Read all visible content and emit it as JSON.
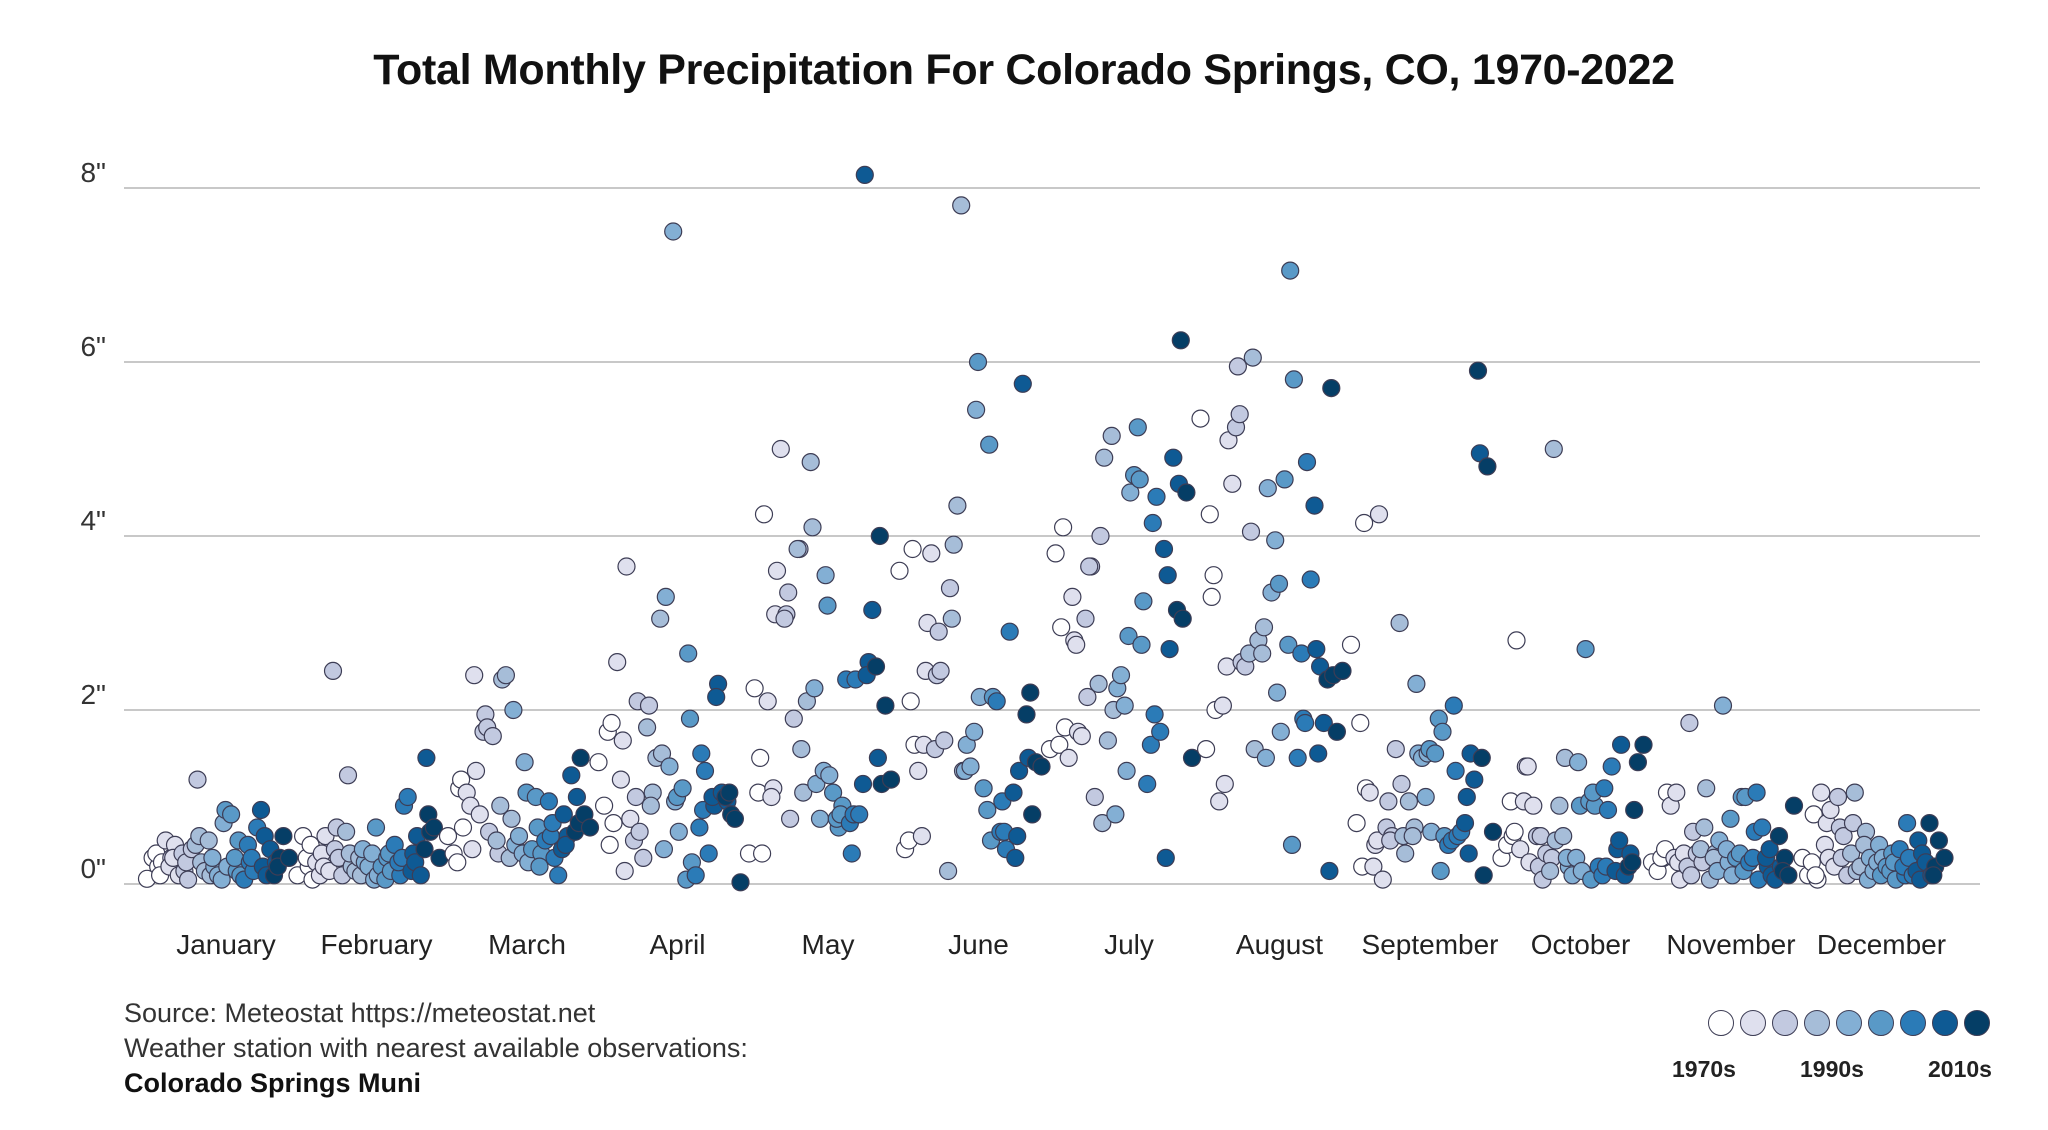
{
  "title": "Total Monthly Precipitation For Colorado Springs, CO, 1970-2022",
  "source": {
    "line1": "Source: Meteostat https://meteostat.net",
    "line2": "Weather station with nearest available observations:",
    "station": "Colorado Springs Muni"
  },
  "legend": {
    "labels": [
      "1970s",
      "1990s",
      "2010s"
    ],
    "colors": [
      "#ffffff",
      "#dfe0ee",
      "#c2c9e0",
      "#a6bdd8",
      "#83afd4",
      "#5999c7",
      "#2b7bb7",
      "#0e5a94",
      "#053e66"
    ]
  },
  "chart_data": {
    "type": "scatter",
    "title": "Total Monthly Precipitation For Colorado Springs, CO, 1970-2022",
    "xlabel": "",
    "ylabel": "",
    "categories": [
      "January",
      "February",
      "March",
      "April",
      "May",
      "June",
      "July",
      "August",
      "September",
      "October",
      "November",
      "December"
    ],
    "ylim": [
      0,
      8.2
    ],
    "yticks": [
      0,
      2,
      4,
      6,
      8
    ],
    "ytick_labels": [
      "0\"",
      "2\"",
      "4\"",
      "6\"",
      "8\""
    ],
    "grid": true,
    "legend_placement": "bottom-right",
    "color_by": "decade",
    "series": [
      {
        "name": "January",
        "values": [
          0.06,
          0.3,
          0.2,
          0.35,
          0.25,
          0.1,
          0.5,
          0.3,
          0.2,
          0.45,
          0.3,
          0.1,
          0.15,
          0.35,
          0.05,
          0.25,
          0.4,
          1.2,
          0.45,
          0.25,
          0.55,
          0.15,
          0.1,
          0.5,
          0.2,
          0.3,
          0.1,
          0.7,
          0.05,
          0.2,
          0.85,
          0.8,
          0.15,
          0.3,
          0.1,
          0.5,
          0.05,
          0.25,
          0.45,
          0.15,
          0.3,
          0.65,
          0.2,
          0.85,
          0.1,
          0.55,
          0.4,
          0.25,
          0.1,
          0.3,
          0.2,
          0.55,
          0.3
        ]
      },
      {
        "name": "February",
        "values": [
          0.1,
          0.55,
          0.2,
          0.3,
          0.05,
          0.45,
          0.25,
          0.35,
          0.1,
          0.55,
          0.2,
          0.15,
          0.4,
          2.45,
          0.3,
          0.65,
          0.1,
          1.25,
          0.6,
          0.2,
          0.35,
          0.15,
          0.1,
          0.3,
          0.25,
          0.4,
          0.2,
          0.05,
          0.35,
          0.1,
          0.65,
          0.2,
          0.3,
          0.05,
          0.15,
          0.35,
          0.45,
          0.1,
          0.25,
          0.9,
          0.3,
          1.0,
          0.35,
          0.15,
          0.55,
          0.25,
          0.1,
          1.45,
          0.4,
          0.6,
          0.8,
          0.65,
          0.3
        ]
      },
      {
        "name": "March",
        "values": [
          0.55,
          0.35,
          1.1,
          0.25,
          0.65,
          1.2,
          1.05,
          0.4,
          0.9,
          1.3,
          2.4,
          0.8,
          1.95,
          1.75,
          0.6,
          1.8,
          1.7,
          0.35,
          0.5,
          2.35,
          0.9,
          2.4,
          0.75,
          0.3,
          0.45,
          2.0,
          0.55,
          1.4,
          0.35,
          0.25,
          1.05,
          0.4,
          0.65,
          1.0,
          0.35,
          0.2,
          0.5,
          0.55,
          0.95,
          0.3,
          0.7,
          0.1,
          0.8,
          0.4,
          0.55,
          0.45,
          1.25,
          1.0,
          0.6,
          1.45,
          0.7,
          0.8,
          0.65
        ]
      },
      {
        "name": "April",
        "values": [
          1.4,
          0.9,
          0.45,
          1.75,
          0.7,
          1.85,
          2.55,
          1.65,
          1.2,
          3.65,
          0.15,
          0.75,
          1.0,
          0.5,
          0.6,
          2.1,
          0.3,
          2.05,
          1.8,
          1.05,
          0.9,
          1.45,
          1.5,
          3.05,
          3.3,
          0.4,
          1.35,
          0.95,
          7.5,
          0.6,
          1.0,
          1.1,
          2.65,
          0.05,
          0.25,
          1.9,
          0.1,
          1.5,
          0.65,
          1.3,
          0.85,
          0.35,
          0.9,
          1.0,
          2.3,
          2.15,
          1.05,
          0.95,
          1.0,
          0.8,
          1.05,
          0.75,
          0.02
        ]
      },
      {
        "name": "May",
        "values": [
          0.35,
          2.25,
          1.45,
          1.05,
          4.25,
          0.35,
          2.1,
          1.1,
          1.0,
          3.6,
          3.1,
          5.0,
          3.1,
          3.05,
          0.75,
          3.35,
          1.9,
          3.85,
          3.85,
          1.05,
          1.55,
          2.1,
          4.1,
          4.85,
          1.15,
          2.25,
          0.75,
          3.55,
          1.3,
          1.25,
          3.2,
          1.05,
          0.65,
          0.75,
          0.9,
          0.8,
          2.35,
          0.35,
          0.7,
          2.35,
          0.8,
          0.8,
          8.15,
          1.15,
          2.55,
          2.4,
          3.15,
          1.45,
          2.5,
          1.15,
          4.0,
          2.05,
          1.2
        ]
      },
      {
        "name": "June",
        "values": [
          3.6,
          0.4,
          2.1,
          0.5,
          1.6,
          3.85,
          1.3,
          1.6,
          0.55,
          3.0,
          2.45,
          3.8,
          2.4,
          1.55,
          2.45,
          2.9,
          1.65,
          3.4,
          0.15,
          3.9,
          3.05,
          4.35,
          1.3,
          7.8,
          1.6,
          1.3,
          1.35,
          5.45,
          1.75,
          2.15,
          6.0,
          1.1,
          5.05,
          0.85,
          2.15,
          0.5,
          2.1,
          0.95,
          0.6,
          0.4,
          0.6,
          2.9,
          0.3,
          1.05,
          1.3,
          0.55,
          5.75,
          1.45,
          1.95,
          0.8,
          2.2,
          1.4,
          1.35
        ]
      },
      {
        "name": "July",
        "values": [
          1.55,
          3.8,
          2.95,
          1.6,
          1.8,
          4.1,
          1.45,
          2.8,
          3.3,
          1.75,
          2.75,
          1.7,
          2.15,
          3.05,
          3.65,
          3.65,
          1.0,
          4.0,
          2.3,
          4.9,
          0.7,
          1.65,
          2.0,
          5.15,
          2.25,
          0.8,
          2.4,
          1.3,
          2.05,
          4.5,
          2.85,
          4.7,
          4.65,
          5.25,
          3.25,
          2.75,
          1.15,
          4.15,
          1.6,
          4.45,
          1.95,
          1.75,
          0.3,
          3.85,
          2.7,
          3.55,
          4.9,
          4.6,
          3.15,
          3.05,
          6.25,
          4.5,
          1.45
        ]
      },
      {
        "name": "August",
        "values": [
          5.35,
          1.55,
          3.3,
          4.25,
          2.0,
          3.55,
          0.95,
          1.15,
          2.05,
          5.1,
          2.5,
          4.6,
          5.95,
          5.25,
          2.55,
          5.4,
          2.5,
          4.05,
          2.65,
          1.55,
          6.05,
          2.8,
          2.95,
          2.65,
          4.55,
          1.45,
          3.35,
          2.2,
          3.95,
          1.75,
          3.45,
          4.65,
          7.05,
          2.75,
          5.8,
          0.45,
          1.45,
          1.9,
          2.65,
          4.85,
          1.85,
          3.5,
          2.7,
          4.35,
          2.5,
          1.5,
          1.85,
          0.15,
          2.35,
          2.4,
          5.7,
          1.75,
          2.45
        ]
      },
      {
        "name": "September",
        "values": [
          2.75,
          0.7,
          0.2,
          1.85,
          1.1,
          4.15,
          1.05,
          0.45,
          0.2,
          4.25,
          0.5,
          0.05,
          0.95,
          0.65,
          0.55,
          0.5,
          1.55,
          1.15,
          3.0,
          0.35,
          0.55,
          0.95,
          0.65,
          0.55,
          1.5,
          2.3,
          1.45,
          1.5,
          1.0,
          0.6,
          1.55,
          1.5,
          0.15,
          1.9,
          0.55,
          1.75,
          0.45,
          2.05,
          0.5,
          0.55,
          1.3,
          0.6,
          1.0,
          0.7,
          1.5,
          0.35,
          1.2,
          4.95,
          5.9,
          0.1,
          1.45,
          4.8,
          0.6
        ]
      },
      {
        "name": "October",
        "values": [
          0.3,
          0.45,
          0.55,
          0.95,
          2.8,
          0.6,
          0.4,
          1.35,
          0.95,
          0.25,
          1.35,
          0.9,
          0.2,
          0.55,
          0.05,
          0.55,
          0.35,
          0.3,
          0.15,
          0.5,
          5.0,
          0.9,
          1.45,
          0.55,
          0.2,
          0.3,
          0.1,
          1.4,
          0.3,
          0.15,
          0.9,
          2.7,
          0.05,
          0.95,
          0.9,
          1.05,
          0.2,
          1.1,
          0.1,
          0.85,
          0.2,
          1.35,
          0.4,
          0.15,
          1.6,
          0.5,
          0.1,
          0.35,
          0.2,
          0.85,
          0.25,
          1.4,
          1.6
        ]
      },
      {
        "name": "November",
        "values": [
          0.25,
          0.15,
          0.3,
          0.3,
          1.05,
          0.4,
          0.9,
          1.05,
          0.3,
          0.05,
          0.25,
          0.35,
          1.85,
          0.2,
          0.6,
          0.1,
          0.35,
          0.25,
          0.4,
          1.1,
          0.65,
          0.05,
          0.35,
          0.3,
          0.5,
          0.15,
          2.05,
          0.25,
          0.4,
          0.1,
          0.75,
          0.3,
          1.0,
          0.35,
          1.0,
          0.15,
          0.25,
          0.6,
          0.3,
          0.05,
          1.05,
          0.65,
          0.2,
          0.3,
          0.1,
          0.4,
          0.05,
          0.2,
          0.55,
          0.3,
          0.15,
          0.1,
          0.9
        ]
      },
      {
        "name": "December",
        "values": [
          0.3,
          0.1,
          0.8,
          0.25,
          0.05,
          0.1,
          1.05,
          0.7,
          0.45,
          0.85,
          0.3,
          0.2,
          0.65,
          1.0,
          0.55,
          0.3,
          0.1,
          0.7,
          0.35,
          0.15,
          1.05,
          0.2,
          0.6,
          0.45,
          0.3,
          0.05,
          0.15,
          0.45,
          0.25,
          0.3,
          0.1,
          0.2,
          0.35,
          0.15,
          0.05,
          0.25,
          0.4,
          0.1,
          0.2,
          0.3,
          0.7,
          0.1,
          0.5,
          0.15,
          0.35,
          0.05,
          0.25,
          0.1,
          0.7,
          0.2,
          0.1,
          0.5,
          0.3
        ]
      }
    ]
  }
}
